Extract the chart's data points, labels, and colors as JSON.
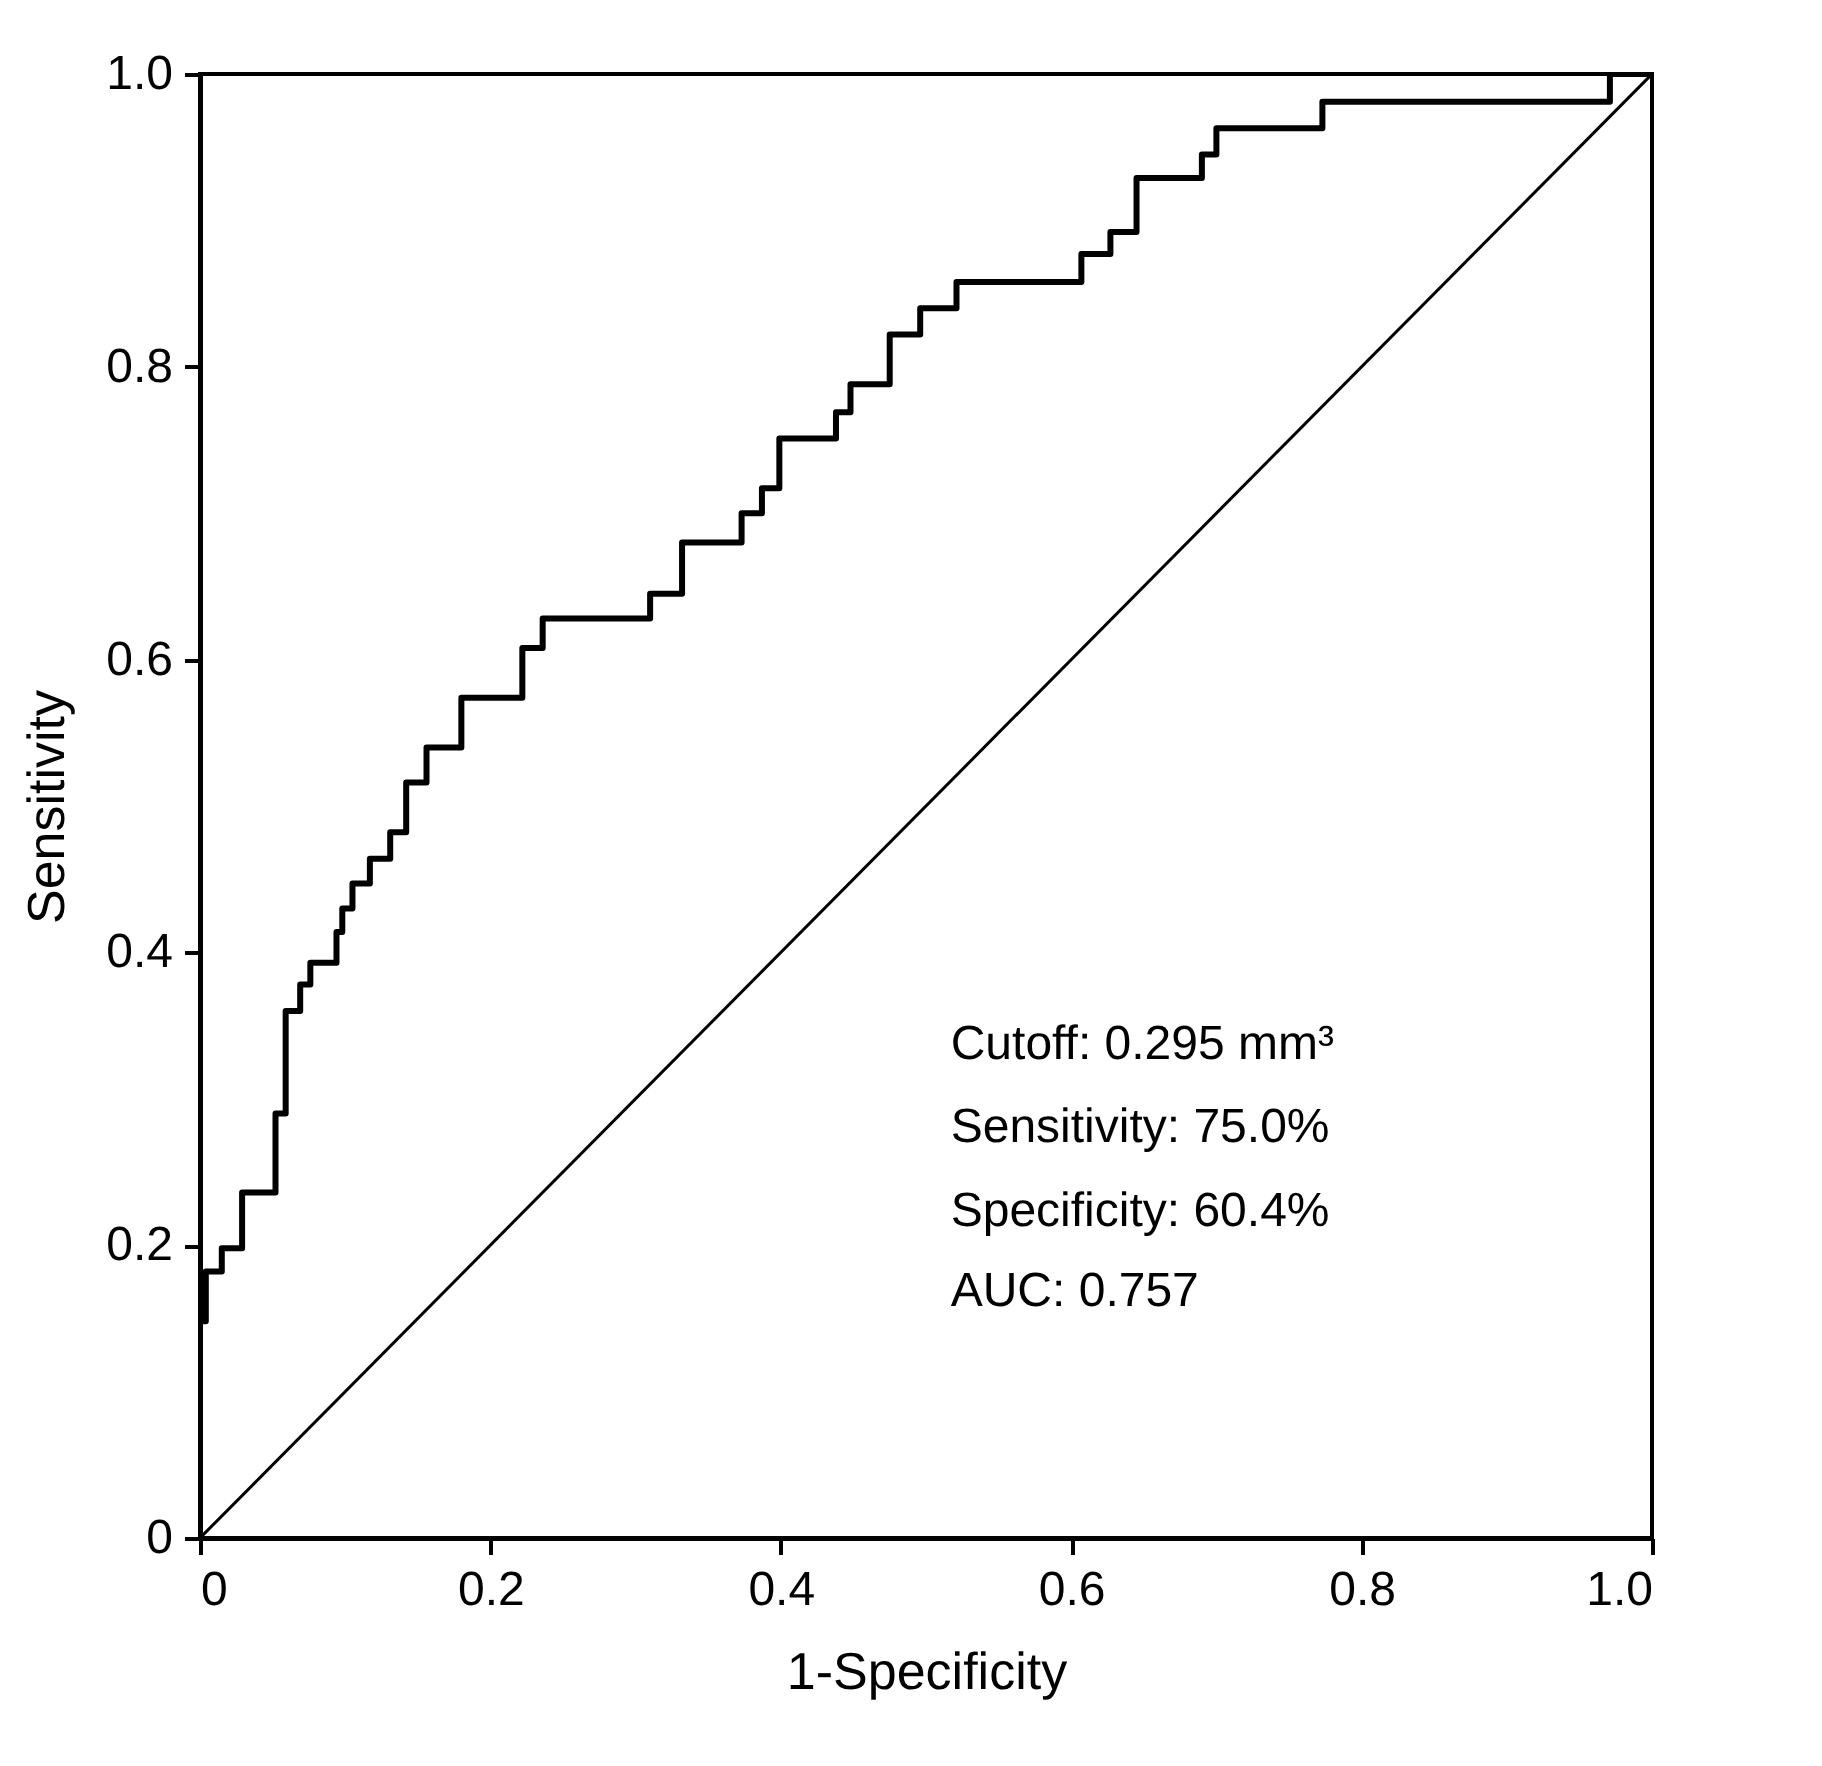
{
  "chart_data": {
    "type": "step",
    "xlabel": "1-Specificity",
    "ylabel": "Sensitivity",
    "xlim": [
      0,
      1
    ],
    "ylim": [
      0,
      1
    ],
    "xticks": [
      0,
      0.2,
      0.4,
      0.6,
      0.8,
      {
        "value": 1,
        "label": "1.0"
      }
    ],
    "yticks": [
      0,
      0.2,
      0.4,
      0.6,
      0.8,
      {
        "value": 1,
        "label": "1.0"
      }
    ],
    "grid": false,
    "line_style": "solid",
    "marker": "none",
    "series": [
      {
        "color": "#000000",
        "x": [
          0,
          0.004,
          0.015,
          0.029,
          0.052,
          0.059,
          0.069,
          0.076,
          0.094,
          0.098,
          0.105,
          0.117,
          0.131,
          0.142,
          0.156,
          0.18,
          0.222,
          0.236,
          0.31,
          0.332,
          0.373,
          0.387,
          0.399,
          0.438,
          0.448,
          0.475,
          0.496,
          0.521,
          0.607,
          0.627,
          0.645,
          0.69,
          0.7,
          0.773,
          0.971,
          1.0
        ],
        "values": [
          0,
          0.148,
          0.182,
          0.198,
          0.236,
          0.29,
          0.36,
          0.378,
          0.393,
          0.414,
          0.43,
          0.447,
          0.464,
          0.482,
          0.516,
          0.54,
          0.574,
          0.608,
          0.628,
          0.645,
          0.68,
          0.7,
          0.717,
          0.751,
          0.769,
          0.788,
          0.822,
          0.84,
          0.858,
          0.877,
          0.892,
          0.929,
          0.945,
          0.963,
          0.981,
          1.0
        ]
      },
      {
        "type": "line",
        "color": "#000000",
        "x": [
          0,
          1
        ],
        "values": [
          0,
          1
        ]
      }
    ],
    "annotations": [
      "Cutoff: 0.295 mm³",
      "Sensitivity: 75.0%",
      "Specificity: 60.4%",
      "AUC: 0.757"
    ]
  }
}
